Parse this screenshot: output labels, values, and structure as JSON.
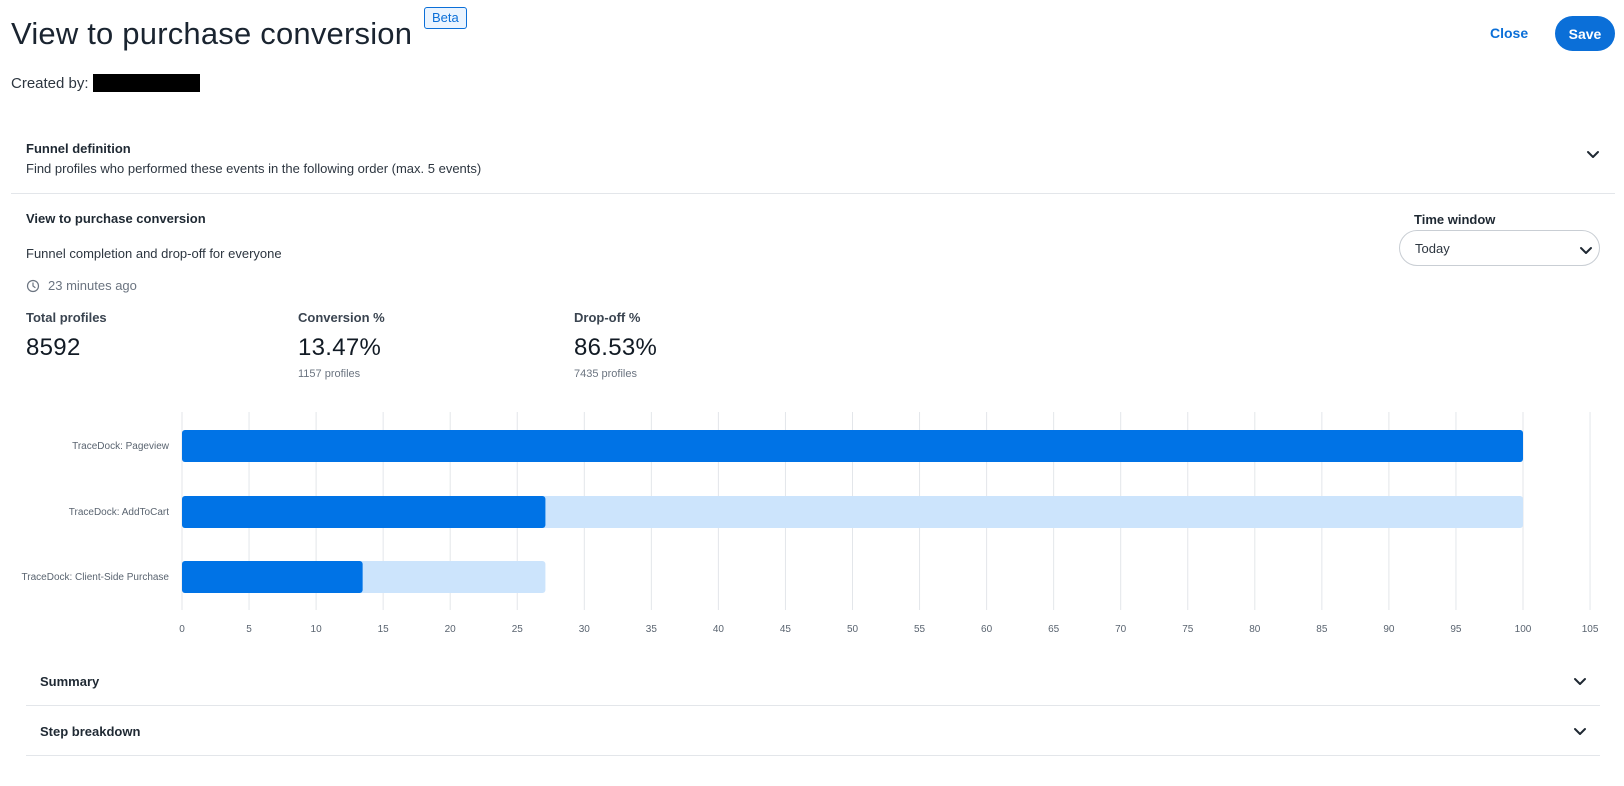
{
  "header": {
    "title": "View to purchase conversion",
    "badge": "Beta",
    "created_by_label": "Created by:",
    "close_label": "Close",
    "save_label": "Save"
  },
  "funnel_definition": {
    "title": "Funnel definition",
    "description": "Find profiles who performed these events in the following order (max. 5 events)"
  },
  "report": {
    "title": "View to purchase conversion",
    "subtitle": "Funnel completion and drop-off for everyone",
    "updated": "23 minutes ago"
  },
  "time_window": {
    "label": "Time window",
    "value": "Today"
  },
  "stats": {
    "total": {
      "label": "Total profiles",
      "value": "8592"
    },
    "conversion": {
      "label": "Conversion %",
      "value": "13.47%",
      "sub": "1157 profiles"
    },
    "dropoff": {
      "label": "Drop-off %",
      "value": "86.53%",
      "sub": "7435 profiles"
    }
  },
  "chart_data": {
    "type": "bar",
    "orientation": "horizontal",
    "categories": [
      "TraceDock: Pageview",
      "TraceDock: AddToCart",
      "TraceDock: Client-Side Purchase"
    ],
    "series": [
      {
        "values": [
          100,
          27.1,
          13.47
        ]
      },
      {
        "values": [
          100,
          100,
          27.1
        ]
      }
    ],
    "x_ticks": [
      0,
      5,
      10,
      15,
      20,
      25,
      30,
      35,
      40,
      45,
      50,
      55,
      60,
      65,
      70,
      75,
      80,
      85,
      90,
      95,
      100,
      105
    ],
    "xlim": [
      0,
      105
    ],
    "grid": true,
    "colors": {
      "completed": "#0073e6",
      "previous": "#cce4fc",
      "grid": "#e3e6ea",
      "label": "#5a6470"
    }
  },
  "sections": {
    "summary": "Summary",
    "step_breakdown": "Step breakdown"
  }
}
